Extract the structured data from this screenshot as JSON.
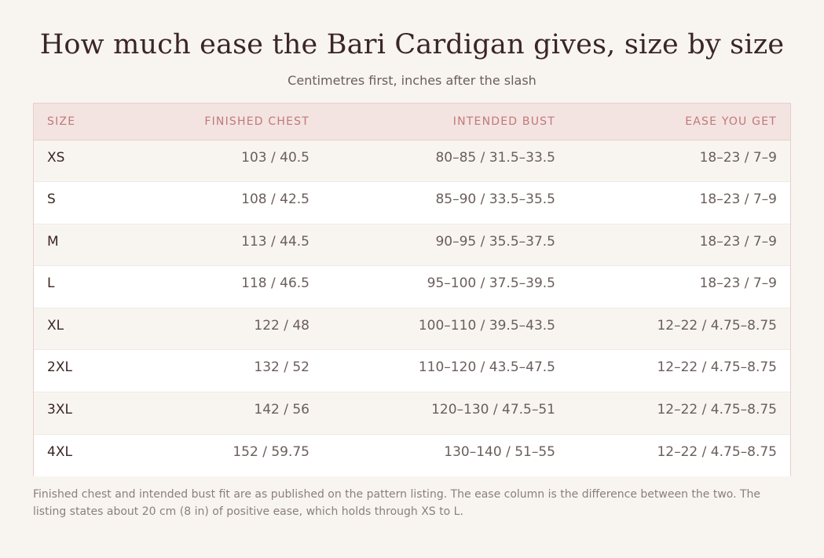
{
  "title": "How much ease the Bari Cardigan gives, size by size",
  "subtitle": "Centimetres first, inches after the slash",
  "table": {
    "headers": {
      "size": "SIZE",
      "finished_chest": "FINISHED CHEST",
      "intended_bust": "INTENDED BUST",
      "ease": "EASE YOU GET"
    },
    "rows": [
      {
        "size": "XS",
        "finished_chest": "103 / 40.5",
        "intended_bust": "80–85 / 31.5–33.5",
        "ease": "18–23 / 7–9"
      },
      {
        "size": "S",
        "finished_chest": "108 / 42.5",
        "intended_bust": "85–90 / 33.5–35.5",
        "ease": "18–23 / 7–9"
      },
      {
        "size": "M",
        "finished_chest": "113 / 44.5",
        "intended_bust": "90–95 / 35.5–37.5",
        "ease": "18–23 / 7–9"
      },
      {
        "size": "L",
        "finished_chest": "118 / 46.5",
        "intended_bust": "95–100 / 37.5–39.5",
        "ease": "18–23 / 7–9"
      },
      {
        "size": "XL",
        "finished_chest": "122 / 48",
        "intended_bust": "100–110 / 39.5–43.5",
        "ease": "12–22 / 4.75–8.75"
      },
      {
        "size": "2XL",
        "finished_chest": "132 / 52",
        "intended_bust": "110–120 / 43.5–47.5",
        "ease": "12–22 / 4.75–8.75"
      },
      {
        "size": "3XL",
        "finished_chest": "142 / 56",
        "intended_bust": "120–130 / 47.5–51",
        "ease": "12–22 / 4.75–8.75"
      },
      {
        "size": "4XL",
        "finished_chest": "152 / 59.75",
        "intended_bust": "130–140 / 51–55",
        "ease": "12–22 / 4.75–8.75"
      }
    ]
  },
  "note": "Finished chest and intended bust fit are as published on the pattern listing. The ease column is the difference between the two. The listing states about 20 cm (8 in) of positive ease, which holds through XS to L."
}
